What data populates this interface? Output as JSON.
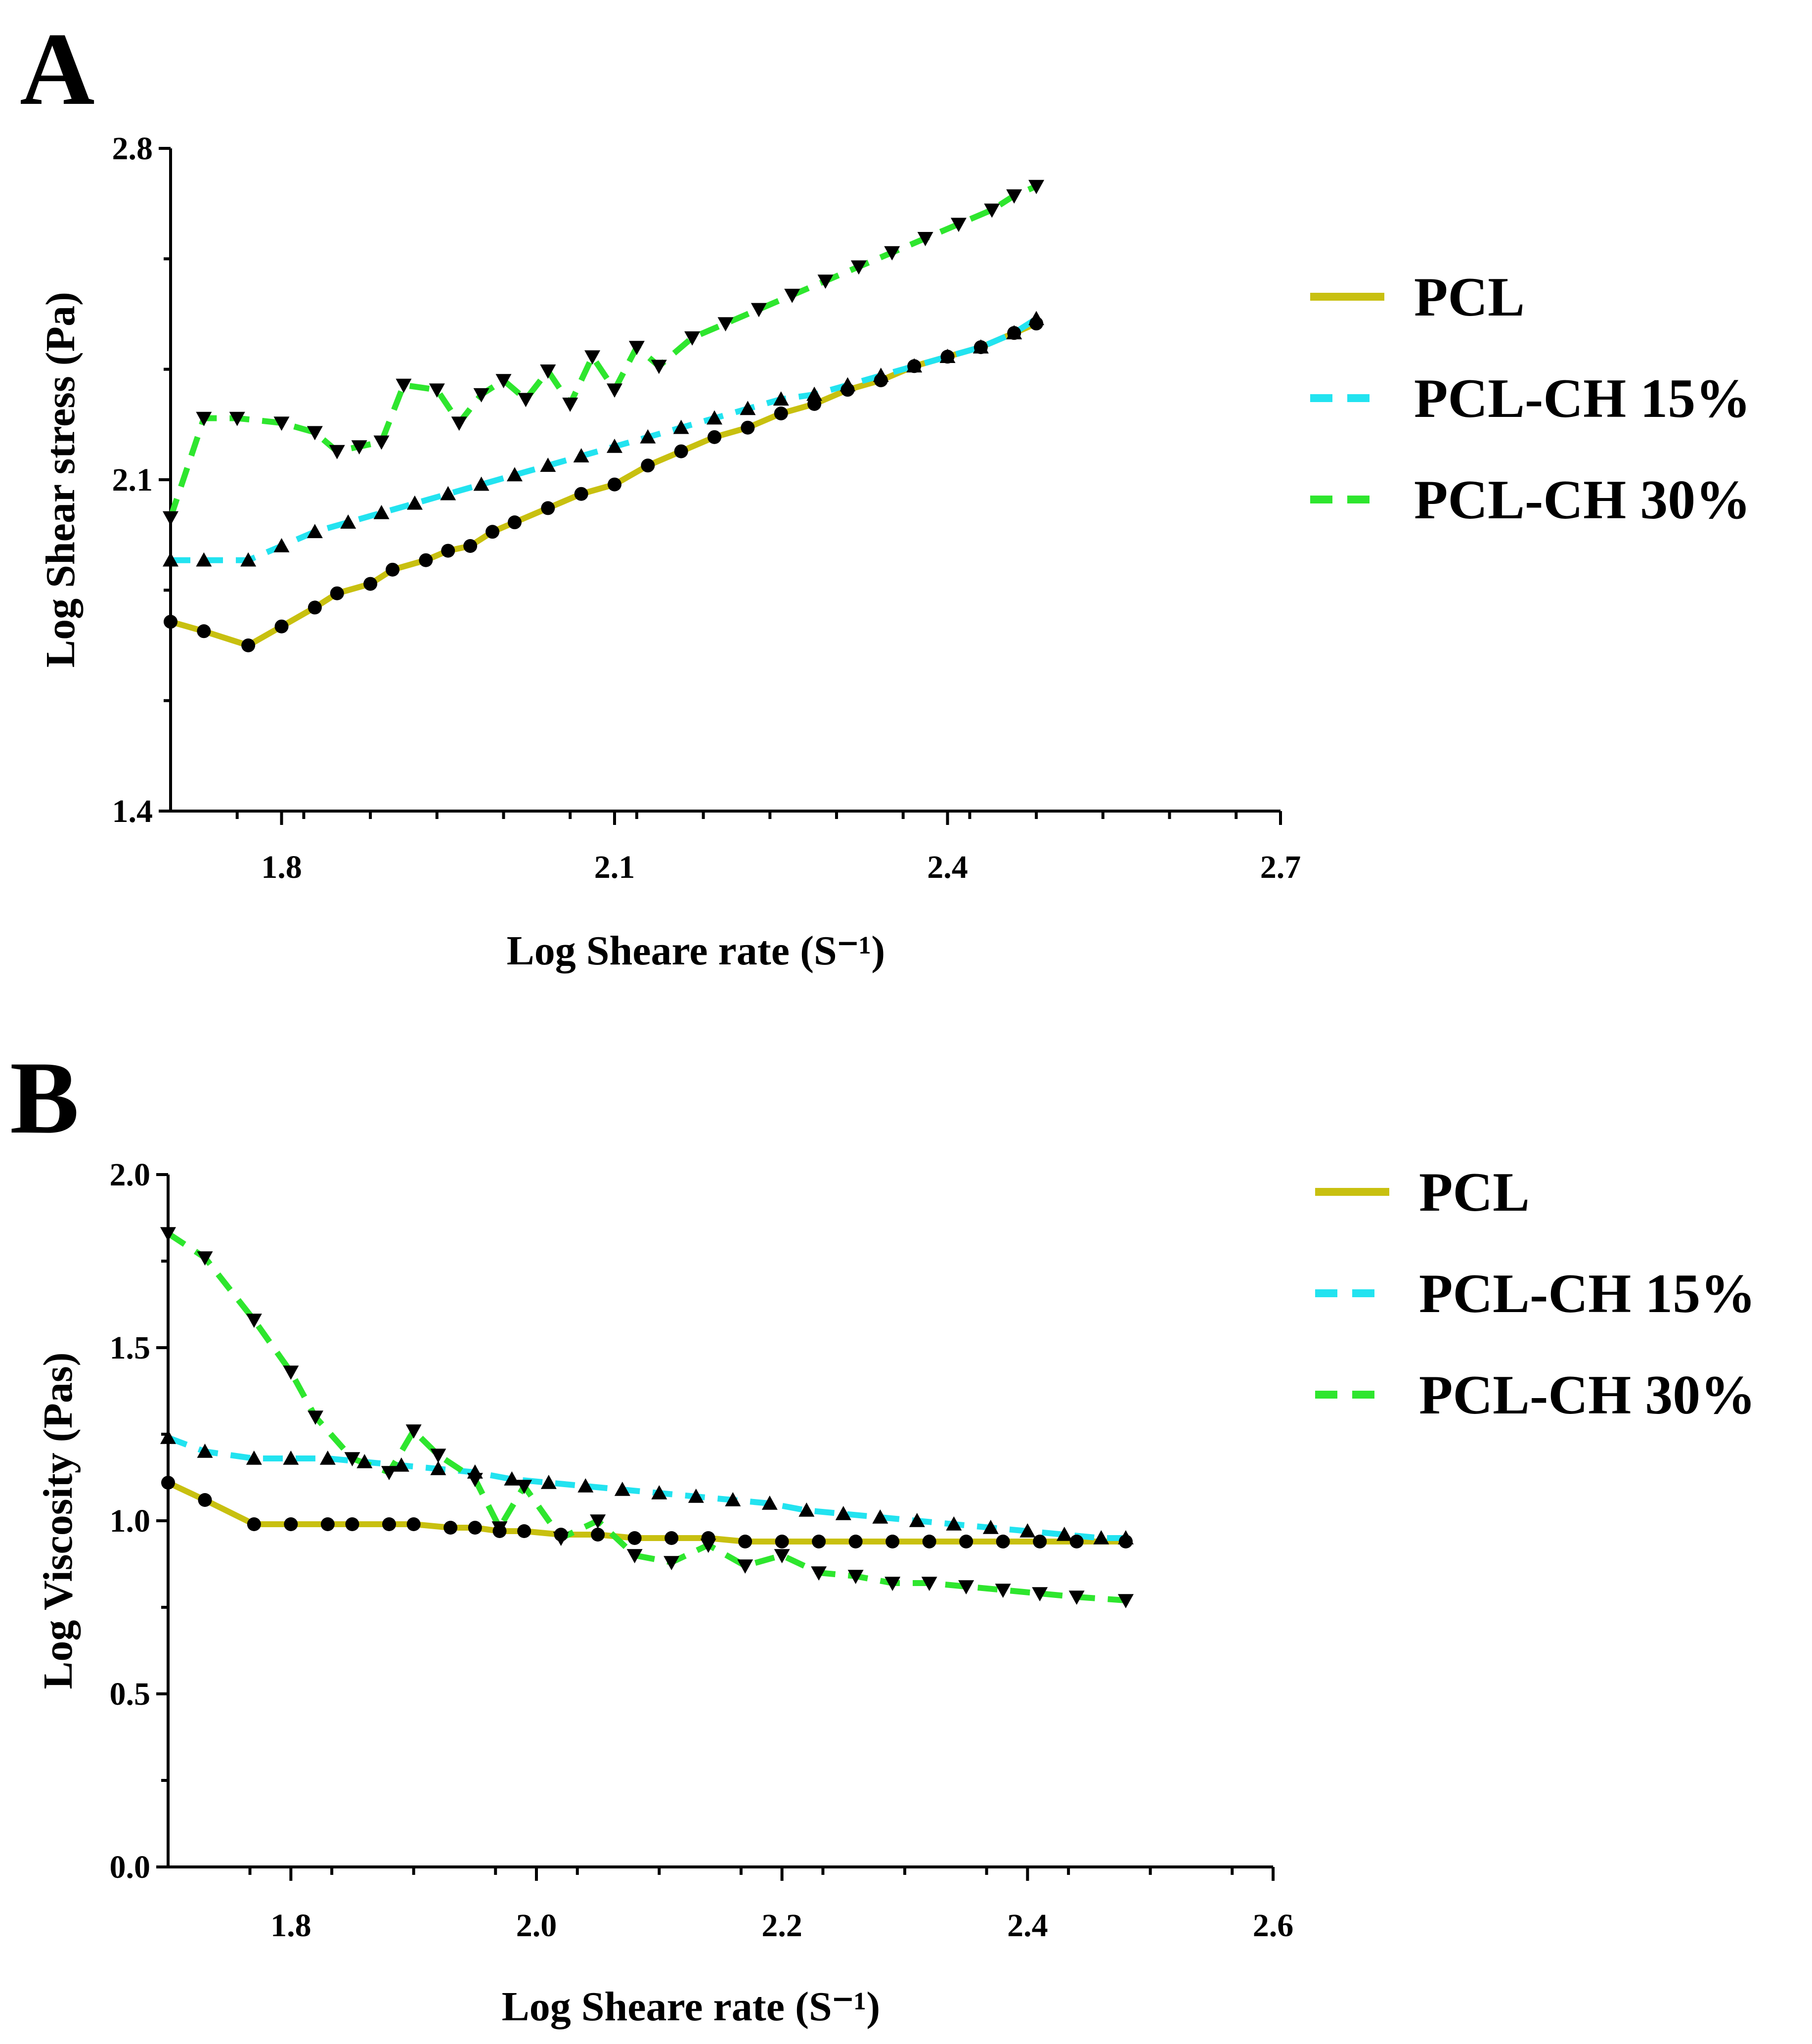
{
  "colors": {
    "PCL": "#c8c010",
    "PCL-CH 15%": "#22e3f0",
    "PCL-CH 30%": "#2ee62e",
    "axis": "#000000",
    "marker": "#000000"
  },
  "chart_data": [
    {
      "panel": "A",
      "type": "line",
      "title": "",
      "xlabel": "Log Sheare rate (S⁻¹)",
      "ylabel": "Log Shear stress (Pa)",
      "xlim": [
        1.7,
        2.7
      ],
      "ylim": [
        1.4,
        2.8
      ],
      "xticks": [
        "1.8",
        "2.1",
        "2.4",
        "2.7"
      ],
      "yticks": [
        "1.4",
        "2.1",
        "2.8"
      ],
      "legend": [
        "PCL",
        "PCL-CH 15%",
        "PCL-CH 30%"
      ],
      "legend_position": "right",
      "series": [
        {
          "name": "PCL",
          "style": "solid",
          "marker": "circle",
          "x": [
            1.7,
            1.73,
            1.77,
            1.8,
            1.83,
            1.85,
            1.88,
            1.9,
            1.93,
            1.95,
            1.97,
            1.99,
            2.01,
            2.04,
            2.07,
            2.1,
            2.13,
            2.16,
            2.19,
            2.22,
            2.25,
            2.28,
            2.31,
            2.34,
            2.37,
            2.4,
            2.43,
            2.46,
            2.48
          ],
          "values": [
            1.8,
            1.78,
            1.75,
            1.79,
            1.83,
            1.86,
            1.88,
            1.91,
            1.93,
            1.95,
            1.96,
            1.99,
            2.01,
            2.04,
            2.07,
            2.09,
            2.13,
            2.16,
            2.19,
            2.21,
            2.24,
            2.26,
            2.29,
            2.31,
            2.34,
            2.36,
            2.38,
            2.41,
            2.43
          ]
        },
        {
          "name": "PCL-CH 15%",
          "style": "dashed",
          "marker": "triangle-up",
          "x": [
            1.7,
            1.73,
            1.77,
            1.8,
            1.83,
            1.86,
            1.89,
            1.92,
            1.95,
            1.98,
            2.01,
            2.04,
            2.07,
            2.1,
            2.13,
            2.16,
            2.19,
            2.22,
            2.25,
            2.28,
            2.31,
            2.34,
            2.37,
            2.4,
            2.43,
            2.46,
            2.48
          ],
          "values": [
            1.93,
            1.93,
            1.93,
            1.96,
            1.99,
            2.01,
            2.03,
            2.05,
            2.07,
            2.09,
            2.11,
            2.13,
            2.15,
            2.17,
            2.19,
            2.21,
            2.23,
            2.25,
            2.27,
            2.28,
            2.3,
            2.32,
            2.34,
            2.36,
            2.38,
            2.41,
            2.44
          ]
        },
        {
          "name": "PCL-CH 30%",
          "style": "dashed",
          "marker": "triangle-down",
          "x": [
            1.7,
            1.73,
            1.76,
            1.8,
            1.83,
            1.85,
            1.87,
            1.89,
            1.91,
            1.94,
            1.96,
            1.98,
            2.0,
            2.02,
            2.04,
            2.06,
            2.08,
            2.1,
            2.12,
            2.14,
            2.17,
            2.2,
            2.23,
            2.26,
            2.29,
            2.32,
            2.35,
            2.38,
            2.41,
            2.44,
            2.46,
            2.48
          ],
          "values": [
            2.02,
            2.23,
            2.23,
            2.22,
            2.2,
            2.16,
            2.17,
            2.18,
            2.3,
            2.29,
            2.22,
            2.28,
            2.31,
            2.27,
            2.33,
            2.26,
            2.36,
            2.29,
            2.38,
            2.34,
            2.4,
            2.43,
            2.46,
            2.49,
            2.52,
            2.55,
            2.58,
            2.61,
            2.64,
            2.67,
            2.7,
            2.72
          ]
        }
      ]
    },
    {
      "panel": "B",
      "type": "line",
      "title": "",
      "xlabel": "Log Sheare rate (S⁻¹)",
      "ylabel": "Log Viscosity (Pas)",
      "xlim": [
        1.7,
        2.6
      ],
      "ylim": [
        0.0,
        2.0
      ],
      "xticks": [
        "1.8",
        "2.0",
        "2.2",
        "2.4",
        "2.6"
      ],
      "yticks": [
        "0.0",
        "0.5",
        "1.0",
        "1.5",
        "2.0"
      ],
      "legend": [
        "PCL",
        "PCL-CH 15%",
        "PCL-CH 30%"
      ],
      "legend_position": "right",
      "series": [
        {
          "name": "PCL",
          "style": "solid",
          "marker": "circle",
          "x": [
            1.7,
            1.73,
            1.77,
            1.8,
            1.83,
            1.85,
            1.88,
            1.9,
            1.93,
            1.95,
            1.97,
            1.99,
            2.02,
            2.05,
            2.08,
            2.11,
            2.14,
            2.17,
            2.2,
            2.23,
            2.26,
            2.29,
            2.32,
            2.35,
            2.38,
            2.41,
            2.44,
            2.48
          ],
          "values": [
            1.11,
            1.06,
            0.99,
            0.99,
            0.99,
            0.99,
            0.99,
            0.99,
            0.98,
            0.98,
            0.97,
            0.97,
            0.96,
            0.96,
            0.95,
            0.95,
            0.95,
            0.94,
            0.94,
            0.94,
            0.94,
            0.94,
            0.94,
            0.94,
            0.94,
            0.94,
            0.94,
            0.94
          ]
        },
        {
          "name": "PCL-CH 15%",
          "style": "dashed",
          "marker": "triangle-up",
          "x": [
            1.7,
            1.73,
            1.77,
            1.8,
            1.83,
            1.86,
            1.89,
            1.92,
            1.95,
            1.98,
            2.01,
            2.04,
            2.07,
            2.1,
            2.13,
            2.16,
            2.19,
            2.22,
            2.25,
            2.28,
            2.31,
            2.34,
            2.37,
            2.4,
            2.43,
            2.46,
            2.48
          ],
          "values": [
            1.24,
            1.2,
            1.18,
            1.18,
            1.18,
            1.17,
            1.16,
            1.15,
            1.14,
            1.12,
            1.11,
            1.1,
            1.09,
            1.08,
            1.07,
            1.06,
            1.05,
            1.03,
            1.02,
            1.01,
            1.0,
            0.99,
            0.98,
            0.97,
            0.96,
            0.95,
            0.95
          ]
        },
        {
          "name": "PCL-CH 30%",
          "style": "dashed",
          "marker": "triangle-down",
          "x": [
            1.7,
            1.73,
            1.77,
            1.8,
            1.82,
            1.85,
            1.88,
            1.9,
            1.92,
            1.95,
            1.97,
            1.99,
            2.02,
            2.05,
            2.08,
            2.11,
            2.14,
            2.17,
            2.2,
            2.23,
            2.26,
            2.29,
            2.32,
            2.35,
            2.38,
            2.41,
            2.44,
            2.48
          ],
          "values": [
            1.83,
            1.76,
            1.58,
            1.43,
            1.3,
            1.18,
            1.14,
            1.26,
            1.19,
            1.12,
            0.98,
            1.1,
            0.95,
            1.0,
            0.9,
            0.88,
            0.93,
            0.87,
            0.9,
            0.85,
            0.84,
            0.82,
            0.82,
            0.81,
            0.8,
            0.79,
            0.78,
            0.77
          ]
        }
      ]
    }
  ]
}
